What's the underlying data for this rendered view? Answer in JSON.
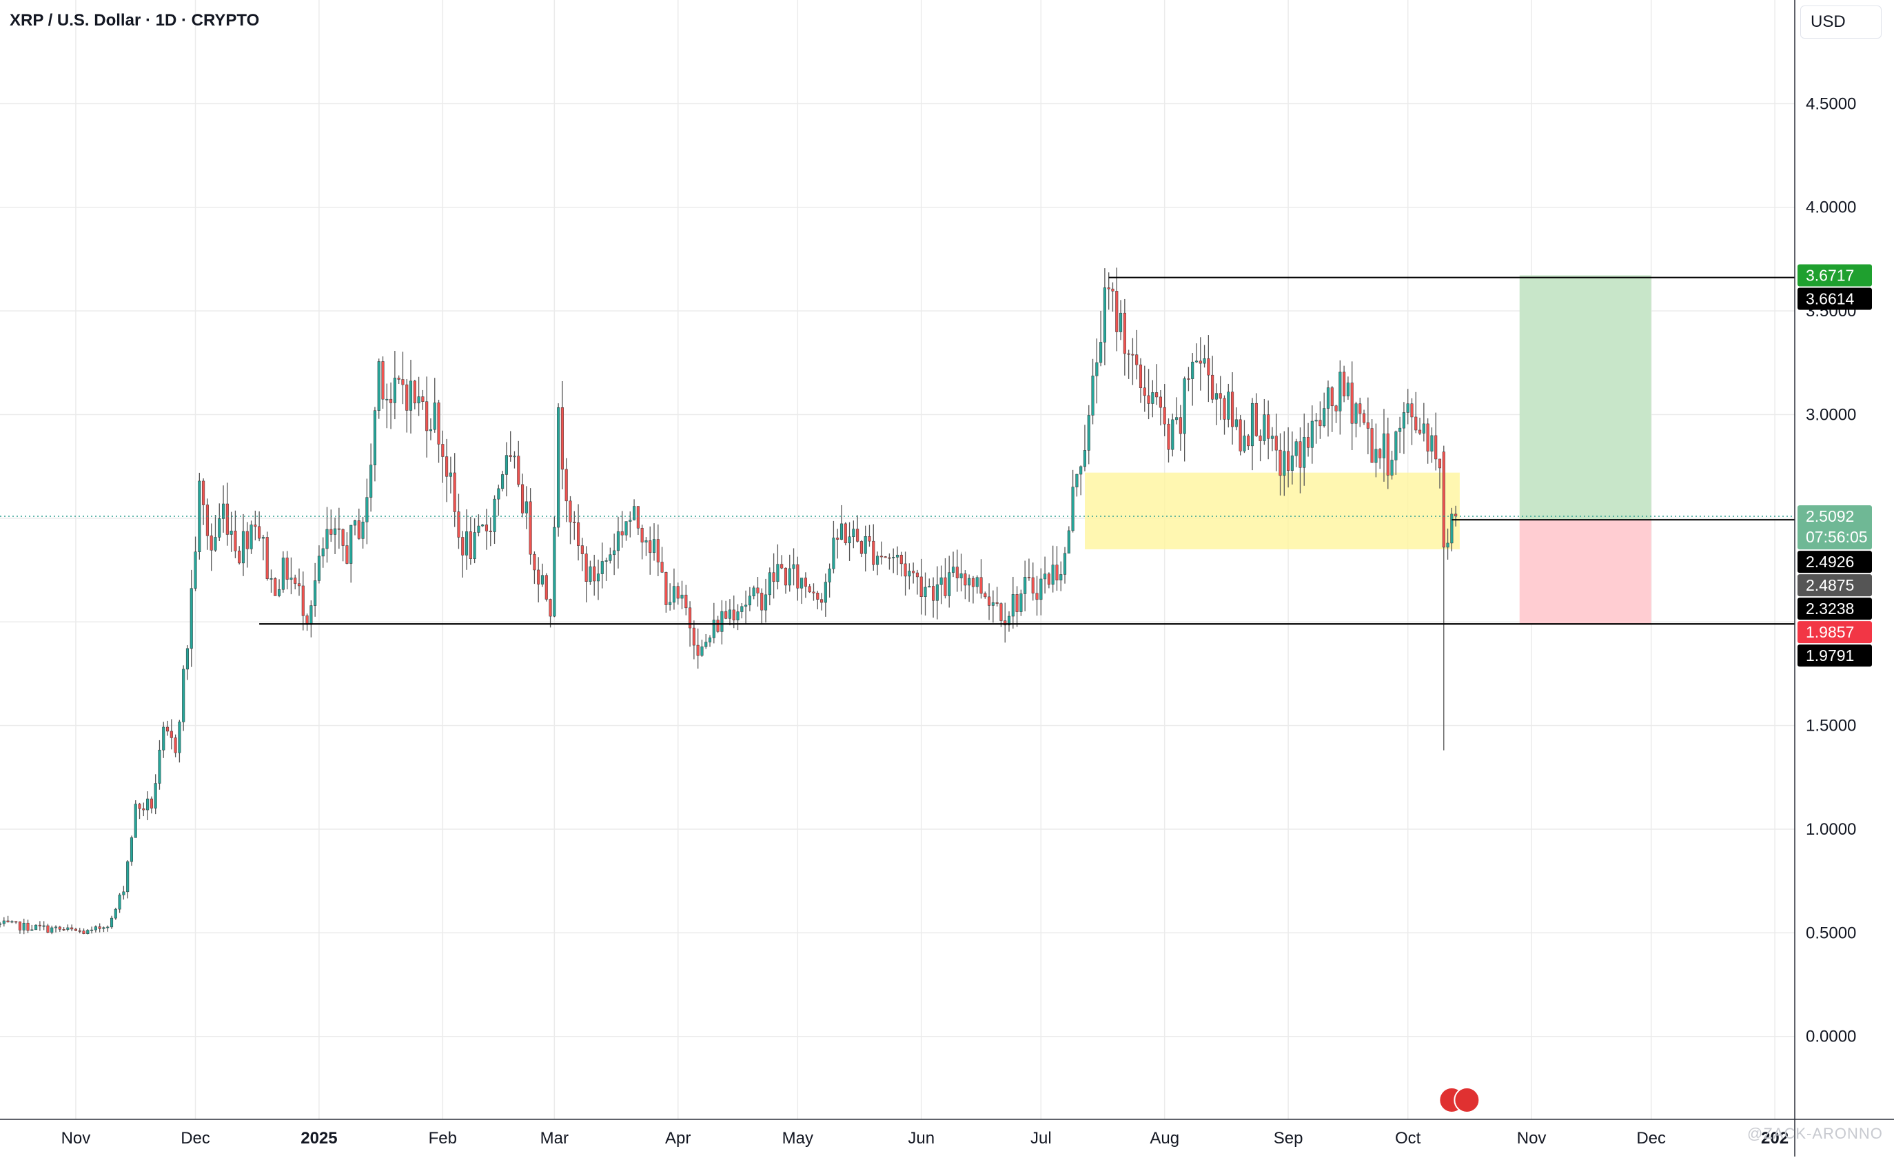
{
  "header": {
    "title": "XRP / U.S. Dollar · 1D · CRYPTO"
  },
  "currency_button": {
    "label": "USD"
  },
  "watermark": {
    "text": "@ZACK-ARONNO"
  },
  "countdown": "07:56:05",
  "chart_data": {
    "type": "candlestick",
    "title": "XRP / U.S. Dollar · 1D · CRYPTO",
    "x_range": [
      "2024-10-13",
      "2026-01-06"
    ],
    "ylim": [
      -0.4,
      5.0
    ],
    "y_ticks": [
      0.0,
      0.5,
      1.0,
      1.5,
      2.0,
      2.5,
      3.0,
      3.5,
      4.0,
      4.5
    ],
    "y_tick_labels": [
      "0.0000",
      "0.5000",
      "1.0000",
      "1.5000",
      "",
      "",
      "3.0000",
      "3.5000",
      "4.0000",
      "4.5000"
    ],
    "x_ticks": [
      {
        "date": "2024-11-01",
        "label": "Nov",
        "bold": false
      },
      {
        "date": "2024-12-01",
        "label": "Dec",
        "bold": false
      },
      {
        "date": "2025-01-01",
        "label": "2025",
        "bold": true
      },
      {
        "date": "2025-02-01",
        "label": "Feb",
        "bold": false
      },
      {
        "date": "2025-03-01",
        "label": "Mar",
        "bold": false
      },
      {
        "date": "2025-04-01",
        "label": "Apr",
        "bold": false
      },
      {
        "date": "2025-05-01",
        "label": "May",
        "bold": false
      },
      {
        "date": "2025-06-01",
        "label": "Jun",
        "bold": false
      },
      {
        "date": "2025-07-01",
        "label": "Jul",
        "bold": false
      },
      {
        "date": "2025-08-01",
        "label": "Aug",
        "bold": false
      },
      {
        "date": "2025-09-01",
        "label": "Sep",
        "bold": false
      },
      {
        "date": "2025-10-01",
        "label": "Oct",
        "bold": false
      },
      {
        "date": "2025-11-01",
        "label": "Nov",
        "bold": false
      },
      {
        "date": "2025-12-01",
        "label": "Dec",
        "bold": false
      },
      {
        "date": "2026-01-01",
        "label": "202",
        "bold": true
      }
    ],
    "grid": true,
    "colors": {
      "up": "#26a69a",
      "down": "#ef5350",
      "wick": "#555555",
      "zone": "#fff59d",
      "target": "#c8e6c9",
      "stop": "#ffcdd2"
    },
    "price_path": [
      [
        "2024-10-13",
        0.54
      ],
      [
        "2024-10-25",
        0.52
      ],
      [
        "2024-11-05",
        0.5
      ],
      [
        "2024-11-10",
        0.56
      ],
      [
        "2024-11-13",
        0.72
      ],
      [
        "2024-11-16",
        1.1
      ],
      [
        "2024-11-20",
        1.12
      ],
      [
        "2024-11-23",
        1.45
      ],
      [
        "2024-11-26",
        1.4
      ],
      [
        "2024-11-29",
        1.9
      ],
      [
        "2024-12-02",
        2.62
      ],
      [
        "2024-12-05",
        2.35
      ],
      [
        "2024-12-08",
        2.55
      ],
      [
        "2024-12-12",
        2.35
      ],
      [
        "2024-12-16",
        2.52
      ],
      [
        "2024-12-20",
        2.18
      ],
      [
        "2024-12-24",
        2.25
      ],
      [
        "2024-12-29",
        2.05
      ],
      [
        "2025-01-03",
        2.4
      ],
      [
        "2025-01-08",
        2.35
      ],
      [
        "2025-01-13",
        2.55
      ],
      [
        "2025-01-16",
        3.25
      ],
      [
        "2025-01-19",
        3.05
      ],
      [
        "2025-01-22",
        3.15
      ],
      [
        "2025-01-26",
        3.05
      ],
      [
        "2025-01-30",
        3.0
      ],
      [
        "2025-02-02",
        2.75
      ],
      [
        "2025-02-05",
        2.4
      ],
      [
        "2025-02-09",
        2.35
      ],
      [
        "2025-02-13",
        2.5
      ],
      [
        "2025-02-16",
        2.75
      ],
      [
        "2025-02-20",
        2.7
      ],
      [
        "2025-02-24",
        2.3
      ],
      [
        "2025-02-28",
        2.1
      ],
      [
        "2025-03-02",
        2.95
      ],
      [
        "2025-03-06",
        2.4
      ],
      [
        "2025-03-10",
        2.2
      ],
      [
        "2025-03-14",
        2.3
      ],
      [
        "2025-03-19",
        2.5
      ],
      [
        "2025-03-24",
        2.45
      ],
      [
        "2025-03-29",
        2.15
      ],
      [
        "2025-04-03",
        2.05
      ],
      [
        "2025-04-07",
        1.85
      ],
      [
        "2025-04-11",
        2.0
      ],
      [
        "2025-04-16",
        2.1
      ],
      [
        "2025-04-21",
        2.1
      ],
      [
        "2025-04-26",
        2.25
      ],
      [
        "2025-05-01",
        2.2
      ],
      [
        "2025-05-07",
        2.15
      ],
      [
        "2025-05-12",
        2.45
      ],
      [
        "2025-05-15",
        2.4
      ],
      [
        "2025-05-20",
        2.35
      ],
      [
        "2025-05-26",
        2.3
      ],
      [
        "2025-05-31",
        2.2
      ],
      [
        "2025-06-06",
        2.15
      ],
      [
        "2025-06-11",
        2.25
      ],
      [
        "2025-06-17",
        2.15
      ],
      [
        "2025-06-22",
        2.05
      ],
      [
        "2025-06-27",
        2.15
      ],
      [
        "2025-07-02",
        2.2
      ],
      [
        "2025-07-07",
        2.3
      ],
      [
        "2025-07-10",
        2.75
      ],
      [
        "2025-07-13",
        2.95
      ],
      [
        "2025-07-16",
        3.45
      ],
      [
        "2025-07-18",
        3.55
      ],
      [
        "2025-07-22",
        3.4
      ],
      [
        "2025-07-25",
        3.15
      ],
      [
        "2025-07-29",
        3.1
      ],
      [
        "2025-08-02",
        2.85
      ],
      [
        "2025-08-05",
        2.95
      ],
      [
        "2025-08-08",
        3.3
      ],
      [
        "2025-08-12",
        3.2
      ],
      [
        "2025-08-16",
        3.05
      ],
      [
        "2025-08-20",
        2.9
      ],
      [
        "2025-08-24",
        3.0
      ],
      [
        "2025-08-28",
        2.8
      ],
      [
        "2025-09-01",
        2.75
      ],
      [
        "2025-09-05",
        2.85
      ],
      [
        "2025-09-10",
        3.0
      ],
      [
        "2025-09-14",
        3.1
      ],
      [
        "2025-09-18",
        3.05
      ],
      [
        "2025-09-22",
        2.85
      ],
      [
        "2025-09-26",
        2.8
      ],
      [
        "2025-10-01",
        3.0
      ],
      [
        "2025-10-05",
        2.95
      ],
      [
        "2025-10-09",
        2.8
      ],
      [
        "2025-10-11",
        2.35
      ],
      [
        "2025-10-14",
        2.51
      ]
    ],
    "last_candles": [
      {
        "date": "2025-10-10",
        "o": 2.82,
        "h": 2.85,
        "l": 1.38,
        "c": 2.36
      },
      {
        "date": "2025-10-11",
        "o": 2.36,
        "h": 2.45,
        "l": 2.3,
        "c": 2.38
      },
      {
        "date": "2025-10-12",
        "o": 2.38,
        "h": 2.55,
        "l": 2.34,
        "c": 2.52
      },
      {
        "date": "2025-10-13",
        "o": 2.52,
        "h": 2.56,
        "l": 2.46,
        "c": 2.51
      }
    ],
    "drawings": {
      "support_line": {
        "price": 1.99,
        "from": "2024-12-17",
        "to": "2026-01-06"
      },
      "high_line": {
        "price": 3.6614,
        "from": "2025-07-18",
        "to": "2026-01-06"
      },
      "entry_line": {
        "price": 2.4926,
        "from": "2025-10-12",
        "to": "2026-01-06"
      },
      "demand_zone": {
        "from": "2025-07-12",
        "to": "2025-10-14",
        "top": 2.72,
        "bottom": 2.35
      },
      "long_position": {
        "from": "2025-10-29",
        "to": "2025-12-01",
        "entry": 2.4926,
        "target": 3.6717,
        "stop": 1.9857
      },
      "current_price_line": 2.5092
    },
    "price_labels": [
      {
        "value": "3.6717",
        "price": 3.6717,
        "bg": "#1fa02f",
        "fg": "#ffffff"
      },
      {
        "value": "3.6614",
        "price": 3.6614,
        "bg": "#000000",
        "fg": "#ffffff"
      },
      {
        "value": "2.5092",
        "price": 2.5092,
        "bg": "#6fb895",
        "fg": "#ffffff",
        "sub": "07:56:05"
      },
      {
        "value": "2.4926",
        "price": 2.4926,
        "bg": "#000000",
        "fg": "#ffffff"
      },
      {
        "value": "2.4875",
        "price": 2.4875,
        "bg": "#555555",
        "fg": "#ffffff"
      },
      {
        "value": "2.3238",
        "price": 2.3238,
        "bg": "#000000",
        "fg": "#ffffff"
      },
      {
        "value": "1.9857",
        "price": 1.9857,
        "bg": "#f23645",
        "fg": "#ffffff"
      },
      {
        "value": "1.9791",
        "price": 1.9791,
        "bg": "#000000",
        "fg": "#ffffff"
      }
    ]
  }
}
